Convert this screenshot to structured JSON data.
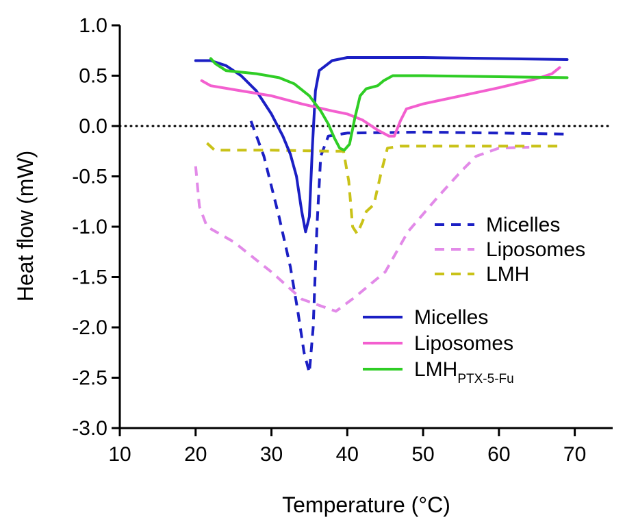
{
  "chart_data": {
    "type": "line",
    "title": "",
    "xlabel": "Temperature (°C)",
    "ylabel": "Heat flow (mW)",
    "xlim": [
      10,
      75
    ],
    "ylim": [
      -3.0,
      1.0
    ],
    "xticks": [
      10,
      20,
      30,
      40,
      50,
      60,
      70
    ],
    "yticks": [
      1.0,
      0.5,
      0.0,
      -0.5,
      -1.0,
      -1.5,
      -2.0,
      -2.5,
      -3.0
    ],
    "xtick_labels": [
      "10",
      "20",
      "30",
      "40",
      "50",
      "60",
      "70"
    ],
    "ytick_labels": [
      "1.0",
      "0.5",
      "0.0",
      "-0.5",
      "-1.0",
      "-1.5",
      "-2.0",
      "-2.5",
      "-3.0"
    ],
    "reference_line": {
      "y": 0.0,
      "style": "dotted",
      "color": "#000000"
    },
    "series": [
      {
        "name": "Micelles",
        "style": "dashed",
        "color": "#1b1fc4",
        "points": [
          [
            27.3,
            0.05
          ],
          [
            29,
            -0.3
          ],
          [
            31,
            -0.9
          ],
          [
            32.5,
            -1.4
          ],
          [
            33.5,
            -1.85
          ],
          [
            34.3,
            -2.25
          ],
          [
            35.0,
            -2.45
          ],
          [
            35.5,
            -2.0
          ],
          [
            36.0,
            -1.0
          ],
          [
            36.5,
            -0.3
          ],
          [
            37.5,
            -0.1
          ],
          [
            40,
            -0.07
          ],
          [
            50,
            -0.06
          ],
          [
            60,
            -0.07
          ],
          [
            69,
            -0.08
          ]
        ]
      },
      {
        "name": "Liposomes",
        "style": "dashed",
        "color": "#e28ae8",
        "points": [
          [
            20,
            -0.4
          ],
          [
            20.5,
            -0.8
          ],
          [
            21.5,
            -1.0
          ],
          [
            25,
            -1.15
          ],
          [
            30,
            -1.45
          ],
          [
            34,
            -1.72
          ],
          [
            38.5,
            -1.84
          ],
          [
            41,
            -1.7
          ],
          [
            45,
            -1.45
          ],
          [
            48,
            -1.05
          ],
          [
            52,
            -0.7
          ],
          [
            55,
            -0.45
          ],
          [
            57,
            -0.3
          ],
          [
            60,
            -0.22
          ],
          [
            64,
            -0.21
          ]
        ]
      },
      {
        "name": "LMH",
        "style": "dashed",
        "color": "#c9c218",
        "points": [
          [
            21.5,
            -0.17
          ],
          [
            22.5,
            -0.24
          ],
          [
            30,
            -0.24
          ],
          [
            38,
            -0.25
          ],
          [
            39.5,
            -0.25
          ],
          [
            40.2,
            -0.55
          ],
          [
            40.7,
            -1.0
          ],
          [
            41.3,
            -1.07
          ],
          [
            42,
            -0.95
          ],
          [
            42.5,
            -0.85
          ],
          [
            43.5,
            -0.78
          ],
          [
            44.5,
            -0.45
          ],
          [
            45.3,
            -0.22
          ],
          [
            47,
            -0.2
          ],
          [
            55,
            -0.2
          ],
          [
            62,
            -0.2
          ],
          [
            68,
            -0.2
          ]
        ]
      },
      {
        "name": "Micelles",
        "style": "solid",
        "color": "#1b1fc4",
        "points": [
          [
            20,
            0.65
          ],
          [
            22,
            0.65
          ],
          [
            24,
            0.6
          ],
          [
            26,
            0.5
          ],
          [
            28,
            0.35
          ],
          [
            30,
            0.12
          ],
          [
            31.5,
            -0.1
          ],
          [
            32.5,
            -0.28
          ],
          [
            33.3,
            -0.5
          ],
          [
            34.0,
            -0.85
          ],
          [
            34.5,
            -1.05
          ],
          [
            35.0,
            -0.9
          ],
          [
            35.4,
            -0.2
          ],
          [
            35.8,
            0.35
          ],
          [
            36.3,
            0.55
          ],
          [
            38,
            0.65
          ],
          [
            40,
            0.68
          ],
          [
            50,
            0.68
          ],
          [
            60,
            0.67
          ],
          [
            69,
            0.66
          ]
        ]
      },
      {
        "name": "Liposomes",
        "style": "solid",
        "color": "#f35fcf",
        "points": [
          [
            20.8,
            0.45
          ],
          [
            22,
            0.4
          ],
          [
            26,
            0.35
          ],
          [
            30,
            0.3
          ],
          [
            34,
            0.22
          ],
          [
            38,
            0.15
          ],
          [
            40,
            0.12
          ],
          [
            42,
            0.06
          ],
          [
            44,
            -0.04
          ],
          [
            45.5,
            -0.1
          ],
          [
            46.2,
            -0.1
          ],
          [
            47,
            0.05
          ],
          [
            47.8,
            0.17
          ],
          [
            50,
            0.22
          ],
          [
            55,
            0.3
          ],
          [
            60,
            0.38
          ],
          [
            65,
            0.47
          ],
          [
            67,
            0.52
          ],
          [
            68,
            0.58
          ]
        ]
      },
      {
        "name": "LMH",
        "subscript": "PTX-5-Fu",
        "style": "solid",
        "color": "#2fcd25",
        "points": [
          [
            22,
            0.67
          ],
          [
            22.6,
            0.62
          ],
          [
            24,
            0.55
          ],
          [
            28,
            0.52
          ],
          [
            31,
            0.48
          ],
          [
            33,
            0.42
          ],
          [
            35,
            0.3
          ],
          [
            36.5,
            0.15
          ],
          [
            37.5,
            0.02
          ],
          [
            38.3,
            -0.12
          ],
          [
            39.0,
            -0.22
          ],
          [
            39.6,
            -0.24
          ],
          [
            40.3,
            -0.18
          ],
          [
            41,
            0.08
          ],
          [
            41.7,
            0.3
          ],
          [
            42.5,
            0.37
          ],
          [
            44,
            0.4
          ],
          [
            44.8,
            0.45
          ],
          [
            46,
            0.5
          ],
          [
            50,
            0.5
          ],
          [
            60,
            0.49
          ],
          [
            69,
            0.48
          ]
        ]
      }
    ],
    "legends": [
      {
        "placement": "middle-right",
        "entries": [
          0,
          1,
          2
        ]
      },
      {
        "placement": "lower-center",
        "entries": [
          3,
          4,
          5
        ]
      }
    ]
  }
}
